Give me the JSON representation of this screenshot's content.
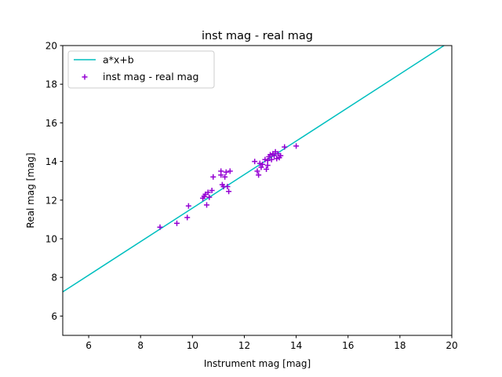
{
  "chart_data": {
    "type": "scatter",
    "title": "inst mag - real mag",
    "xlabel": "Instrument mag [mag]",
    "ylabel": "Real mag [mag]",
    "xlim": [
      5,
      20
    ],
    "ylim": [
      5,
      20
    ],
    "xticks": [
      6,
      8,
      10,
      12,
      14,
      16,
      18,
      20
    ],
    "yticks": [
      6,
      8,
      10,
      12,
      14,
      16,
      18,
      20
    ],
    "grid": false,
    "legend_position": "top-left",
    "series": [
      {
        "name": "a*x+b",
        "kind": "line",
        "color": "#00bfbf",
        "x": [
          5,
          19.7
        ],
        "y": [
          7.25,
          20.0
        ]
      },
      {
        "name": "inst mag - real mag",
        "kind": "scatter",
        "marker": "+",
        "color": "#9400d3",
        "x": [
          8.75,
          9.4,
          9.8,
          9.85,
          10.4,
          10.45,
          10.5,
          10.55,
          10.6,
          10.65,
          10.75,
          10.8,
          11.1,
          11.1,
          11.15,
          11.2,
          11.25,
          11.3,
          11.35,
          11.4,
          11.45,
          12.4,
          12.5,
          12.55,
          12.6,
          12.65,
          12.7,
          12.8,
          12.85,
          12.9,
          12.9,
          12.95,
          13.0,
          13.05,
          13.1,
          13.15,
          13.2,
          13.25,
          13.3,
          13.35,
          13.4,
          13.55,
          14.0
        ],
        "y": [
          10.6,
          10.8,
          11.1,
          11.7,
          12.1,
          12.2,
          12.3,
          11.75,
          12.4,
          12.15,
          12.5,
          13.2,
          13.3,
          13.5,
          12.8,
          12.7,
          13.2,
          13.45,
          12.7,
          12.45,
          13.5,
          14.0,
          13.5,
          13.3,
          13.9,
          13.7,
          13.85,
          14.1,
          13.6,
          13.8,
          14.05,
          14.25,
          14.35,
          14.1,
          14.4,
          14.3,
          14.5,
          14.15,
          14.4,
          14.2,
          14.3,
          14.75,
          14.8
        ]
      }
    ]
  }
}
